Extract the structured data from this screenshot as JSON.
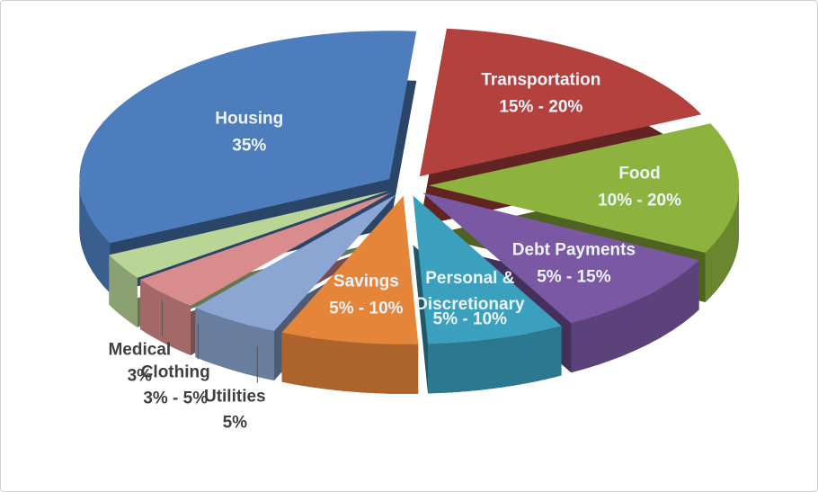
{
  "chart_data": {
    "type": "pie3d",
    "categories": [
      "Transportation",
      "Food",
      "Debt Payments",
      "Personal & Discretionary",
      "Savings",
      "Utilities",
      "Clothing",
      "Medical",
      "Housing"
    ],
    "low": [
      15,
      10,
      5,
      5,
      5,
      5,
      3,
      3,
      35
    ],
    "high": [
      20,
      20,
      15,
      10,
      10,
      5,
      5,
      3,
      35
    ],
    "value_labels": [
      "15% - 20%",
      "10% - 20%",
      "5% - 15%",
      "5% - 10%",
      "5% - 10%",
      "5%",
      "3% - 5%",
      "3%",
      "35%"
    ],
    "colors": [
      "#b3423f",
      "#8db23e",
      "#7b58a4",
      "#3aa0bd",
      "#e5853a",
      "#8ca6d4",
      "#d98c8c",
      "#bad697",
      "#4d7dbd"
    ]
  }
}
